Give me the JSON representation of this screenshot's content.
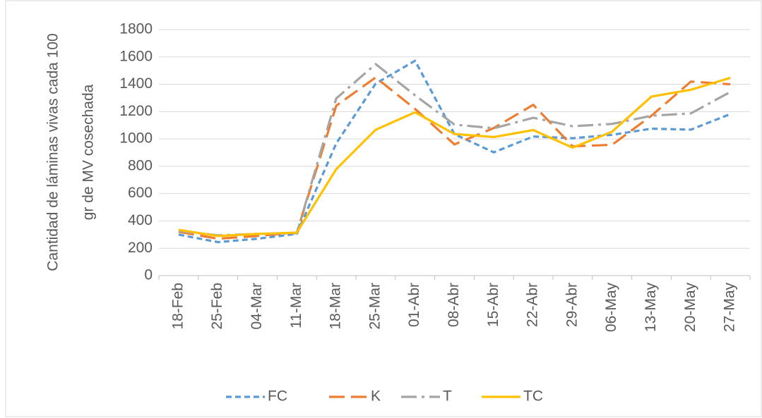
{
  "chart_data": {
    "type": "line",
    "ylabel_lines": [
      "Cantidad de láminas vivas  cada 100",
      "gr de MV cosechada"
    ],
    "categories": [
      "18-Feb",
      "25-Feb",
      "04-Mar",
      "11-Mar",
      "18-Mar",
      "25-Mar",
      "01-Abr",
      "08-Abr",
      "15-Abr",
      "22-Abr",
      "29-Abr",
      "06-May",
      "13-May",
      "20-May",
      "27-May"
    ],
    "series": [
      {
        "name": "FC",
        "color": "#5b9bd5",
        "dash": "8,5",
        "values": [
          300,
          245,
          270,
          305,
          967,
          1405,
          1572,
          1035,
          902,
          1018,
          1005,
          1030,
          1075,
          1068,
          1182
        ]
      },
      {
        "name": "K",
        "color": "#ed7d31",
        "dash": "22,9",
        "values": [
          320,
          270,
          290,
          315,
          1243,
          1450,
          1220,
          960,
          1080,
          1250,
          946,
          957,
          1170,
          1420,
          1400
        ]
      },
      {
        "name": "T",
        "color": "#a5a5a5",
        "dash": "22,7,4,7",
        "values": [
          325,
          295,
          305,
          310,
          1296,
          1548,
          1319,
          1105,
          1078,
          1155,
          1093,
          1110,
          1170,
          1187,
          1344
        ]
      },
      {
        "name": "TC",
        "color": "#ffc000",
        "dash": "none",
        "values": [
          335,
          290,
          305,
          315,
          779,
          1067,
          1195,
          1036,
          1014,
          1065,
          936,
          1053,
          1310,
          1360,
          1447
        ]
      }
    ],
    "ylim": [
      0,
      1800
    ],
    "yticks": [
      0,
      200,
      400,
      600,
      800,
      1000,
      1200,
      1400,
      1600,
      1800
    ],
    "grid": true,
    "legend": "bottom"
  }
}
